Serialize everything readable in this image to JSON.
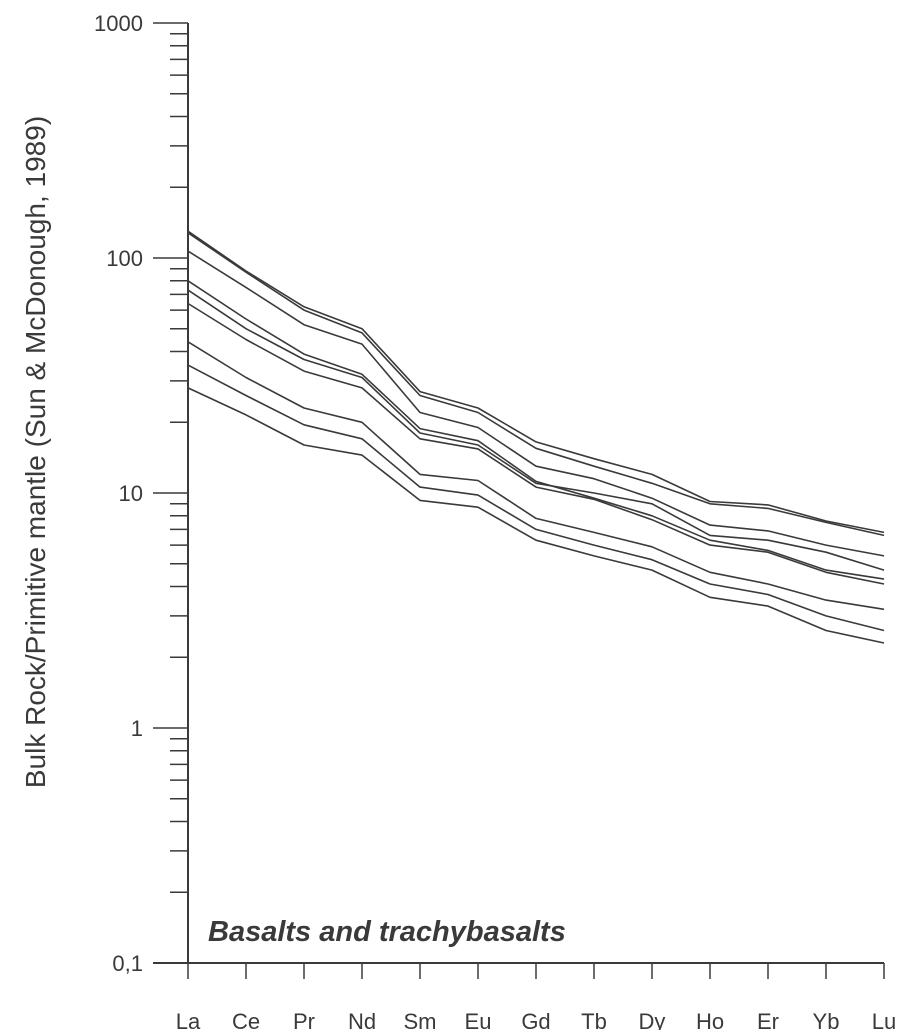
{
  "chart_data": {
    "type": "line",
    "title": "",
    "xlabel": "",
    "ylabel": "Bulk Rock/Primitive mantle (Sun & McDonough, 1989)",
    "annotation": "Basalts and trachybasalts",
    "y_scale": "log",
    "ylim": [
      0.1,
      1000
    ],
    "y_tick_labels": [
      "0,1",
      "1",
      "10",
      "100",
      "1000"
    ],
    "grid": false,
    "legend": "none",
    "line_color": "#3a3a3a",
    "categories": [
      "La",
      "Ce",
      "Pr",
      "Nd",
      "Sm",
      "Eu",
      "Gd",
      "Tb",
      "Dy",
      "Ho",
      "Er",
      "Yb",
      "Lu"
    ],
    "series": [
      {
        "values": [
          130,
          88,
          62,
          50,
          27,
          23,
          16.5,
          14,
          12,
          9.2,
          8.9,
          7.6,
          6.8
        ]
      },
      {
        "values": [
          128,
          87,
          60,
          48,
          26,
          22,
          15.5,
          13,
          11,
          9.0,
          8.6,
          7.5,
          6.6
        ]
      },
      {
        "values": [
          107,
          75,
          52,
          43,
          22,
          19,
          13,
          11.5,
          9.5,
          7.3,
          6.9,
          6.0,
          5.4
        ]
      },
      {
        "values": [
          80,
          55,
          39,
          32,
          18.8,
          16.7,
          11.2,
          9.5,
          8.0,
          6.3,
          5.7,
          4.7,
          4.3
        ]
      },
      {
        "values": [
          73,
          50,
          37,
          31,
          18,
          16,
          11,
          10,
          9.0,
          6.6,
          6.3,
          5.6,
          4.7
        ]
      },
      {
        "values": [
          64,
          45,
          33,
          28,
          17,
          15.4,
          10.6,
          9.4,
          7.7,
          6.0,
          5.6,
          4.6,
          4.1
        ]
      },
      {
        "values": [
          44,
          31,
          23,
          20,
          12,
          11.3,
          7.8,
          6.8,
          5.9,
          4.6,
          4.1,
          3.5,
          3.2
        ]
      },
      {
        "values": [
          35,
          26,
          19.5,
          17,
          10.6,
          9.8,
          7.0,
          6.0,
          5.2,
          4.1,
          3.7,
          3.0,
          2.6
        ]
      },
      {
        "values": [
          28,
          21.5,
          16,
          14.5,
          9.3,
          8.7,
          6.3,
          5.4,
          4.7,
          3.6,
          3.3,
          2.6,
          2.3
        ]
      }
    ]
  }
}
